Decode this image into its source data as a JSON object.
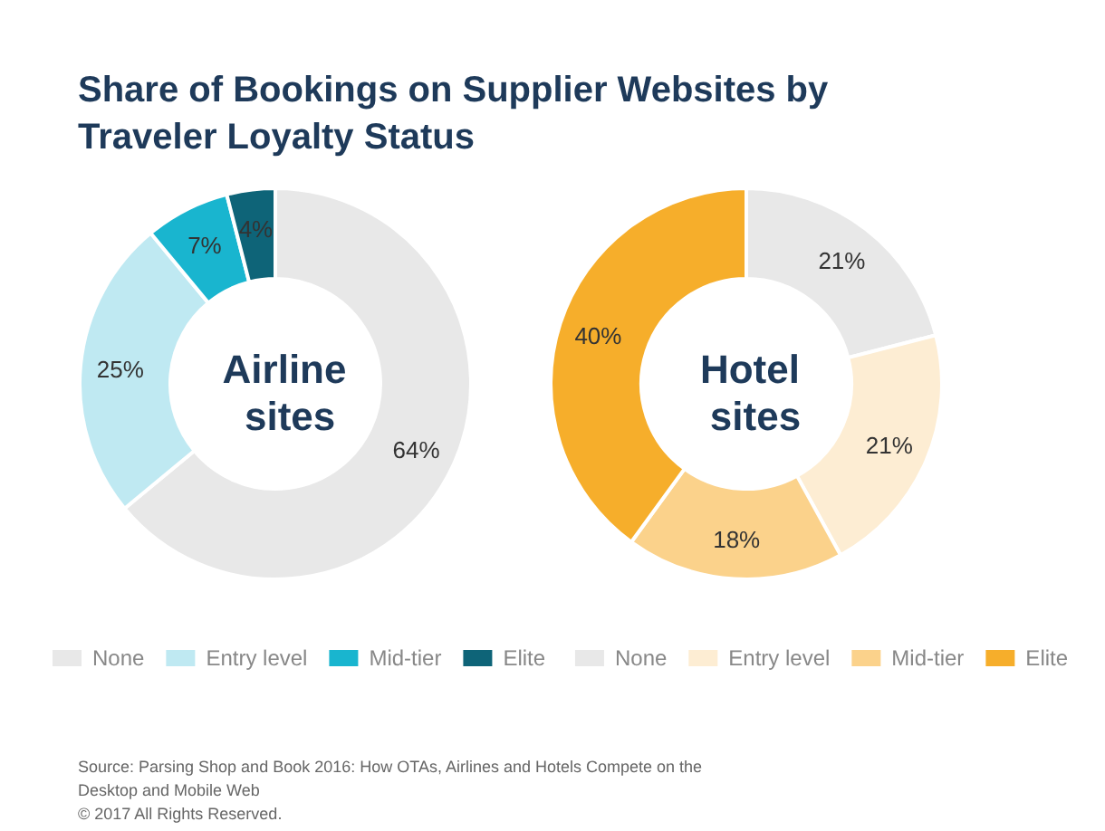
{
  "chart_data": [
    {
      "type": "donut",
      "title": "Share of Bookings on Supplier Websites by Traveler Loyalty Status",
      "subtitle": "Airline sites",
      "categories": [
        "None",
        "Entry level",
        "Mid-tier",
        "Elite"
      ],
      "values": [
        64,
        25,
        7,
        4
      ],
      "value_labels": [
        "64%",
        "25%",
        "7%",
        "4%"
      ],
      "colors": [
        "#e8e8e8",
        "#bfe9f2",
        "#19b5cf",
        "#0e6478"
      ],
      "legend": "bottom",
      "annotations": [
        "Source: Parsing Shop and Book 2016: How OTAs, Airlines and Hotels Compete on the Desktop and Mobile Web",
        "© 2017 All Rights Reserved."
      ]
    },
    {
      "type": "donut",
      "subtitle": "Hotel sites",
      "categories": [
        "None",
        "Entry level",
        "Mid-tier",
        "Elite"
      ],
      "values": [
        21,
        21,
        18,
        40
      ],
      "value_labels": [
        "21%",
        "21%",
        "18%",
        "40%"
      ],
      "colors": [
        "#e8e8e8",
        "#fdedd3",
        "#fbd28b",
        "#f6ae2b"
      ],
      "legend": "bottom"
    }
  ]
}
